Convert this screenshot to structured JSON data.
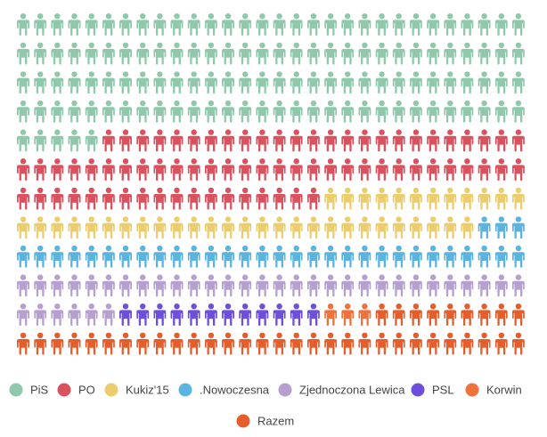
{
  "chart_data": {
    "type": "pictogram",
    "rows": 12,
    "columns": 30,
    "fill_order": "row-major, left-to-right, top-to-bottom",
    "icon": "person-icon",
    "grid": false,
    "legend_placement": "bottom",
    "series": [
      {
        "name": "PiS",
        "value": 125,
        "color": "#8fc8aa"
      },
      {
        "name": "PO",
        "value": 73,
        "color": "#d9525e"
      },
      {
        "name": "Kukiz'15",
        "value": 39,
        "color": "#eccd6e"
      },
      {
        "name": ".Nowoczesna",
        "value": 33,
        "color": "#5ab4df"
      },
      {
        "name": "Zjednoczona Lewica",
        "value": 36,
        "color": "#b6a0cf"
      },
      {
        "name": "PSL",
        "value": 12,
        "color": "#6d4fdc"
      },
      {
        "name": "Korwin",
        "value": 3,
        "color": "#f1713a"
      },
      {
        "name": "Razem",
        "value": 39,
        "color": "#e45d2b"
      }
    ]
  }
}
